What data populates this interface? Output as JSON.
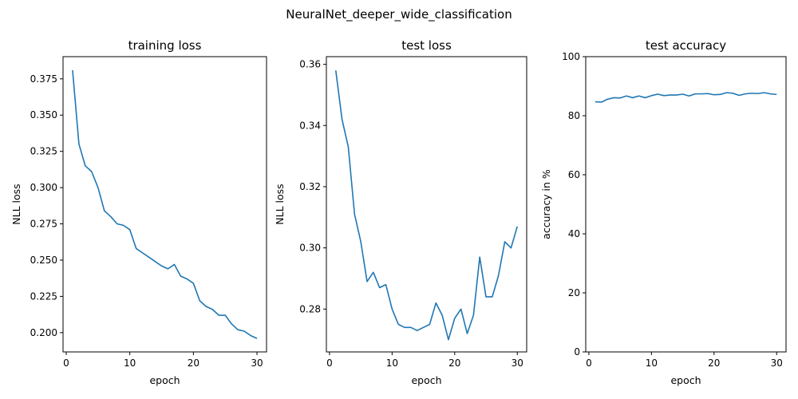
{
  "figure_title": "NeuralNet_deeper_wide_classification",
  "chart_data": [
    {
      "type": "line",
      "title": "training loss",
      "xlabel": "epoch",
      "ylabel": "NLL loss",
      "xlim": [
        -0.5,
        31.5
      ],
      "ylim": [
        0.1867,
        0.3903
      ],
      "xticks": [
        0,
        10,
        20,
        30
      ],
      "xtick_labels": [
        "0",
        "10",
        "20",
        "30"
      ],
      "yticks": [
        0.2,
        0.225,
        0.25,
        0.275,
        0.3,
        0.325,
        0.35,
        0.375
      ],
      "ytick_labels": [
        "0.200",
        "0.225",
        "0.250",
        "0.275",
        "0.300",
        "0.325",
        "0.350",
        "0.375"
      ],
      "grid": false,
      "x": [
        1,
        2,
        3,
        4,
        5,
        6,
        7,
        8,
        9,
        10,
        11,
        12,
        13,
        14,
        15,
        16,
        17,
        18,
        19,
        20,
        21,
        22,
        23,
        24,
        25,
        26,
        27,
        28,
        29,
        30
      ],
      "values": [
        0.381,
        0.33,
        0.315,
        0.311,
        0.3,
        0.284,
        0.28,
        0.275,
        0.274,
        0.271,
        0.258,
        0.255,
        0.252,
        0.249,
        0.246,
        0.244,
        0.247,
        0.239,
        0.237,
        0.234,
        0.222,
        0.218,
        0.216,
        0.212,
        0.212,
        0.206,
        0.202,
        0.201,
        0.198,
        0.196
      ]
    },
    {
      "type": "line",
      "title": "test loss",
      "xlabel": "epoch",
      "ylabel": "NLL loss",
      "xlim": [
        -0.5,
        31.5
      ],
      "ylim": [
        0.266,
        0.3625
      ],
      "xticks": [
        0,
        10,
        20,
        30
      ],
      "xtick_labels": [
        "0",
        "10",
        "20",
        "30"
      ],
      "yticks": [
        0.28,
        0.3,
        0.32,
        0.34,
        0.36
      ],
      "ytick_labels": [
        "0.28",
        "0.30",
        "0.32",
        "0.34",
        "0.36"
      ],
      "grid": false,
      "x": [
        1,
        2,
        3,
        4,
        5,
        6,
        7,
        8,
        9,
        10,
        11,
        12,
        13,
        14,
        15,
        16,
        17,
        18,
        19,
        20,
        21,
        22,
        23,
        24,
        25,
        26,
        27,
        28,
        29,
        30
      ],
      "values": [
        0.358,
        0.342,
        0.333,
        0.311,
        0.302,
        0.289,
        0.292,
        0.287,
        0.288,
        0.28,
        0.275,
        0.274,
        0.274,
        0.273,
        0.274,
        0.275,
        0.282,
        0.278,
        0.27,
        0.277,
        0.28,
        0.272,
        0.278,
        0.297,
        0.284,
        0.284,
        0.291,
        0.302,
        0.3,
        0.307
      ]
    },
    {
      "type": "line",
      "title": "test accuracy",
      "xlabel": "epoch",
      "ylabel": "accuracy in %",
      "xlim": [
        -0.5,
        31.5
      ],
      "ylim": [
        0,
        100
      ],
      "xticks": [
        0,
        10,
        20,
        30
      ],
      "xtick_labels": [
        "0",
        "10",
        "20",
        "30"
      ],
      "yticks": [
        0,
        20,
        40,
        60,
        80,
        100
      ],
      "ytick_labels": [
        "0",
        "20",
        "40",
        "60",
        "80",
        "100"
      ],
      "grid": false,
      "x": [
        1,
        2,
        3,
        4,
        5,
        6,
        7,
        8,
        9,
        10,
        11,
        12,
        13,
        14,
        15,
        16,
        17,
        18,
        19,
        20,
        21,
        22,
        23,
        24,
        25,
        26,
        27,
        28,
        29,
        30
      ],
      "values": [
        84.7,
        84.6,
        85.6,
        86.1,
        86.0,
        86.7,
        86.1,
        86.7,
        86.1,
        86.8,
        87.3,
        86.8,
        87.0,
        87.0,
        87.3,
        86.7,
        87.4,
        87.4,
        87.5,
        87.1,
        87.2,
        87.8,
        87.6,
        86.9,
        87.4,
        87.6,
        87.5,
        87.8,
        87.4,
        87.2
      ]
    }
  ]
}
